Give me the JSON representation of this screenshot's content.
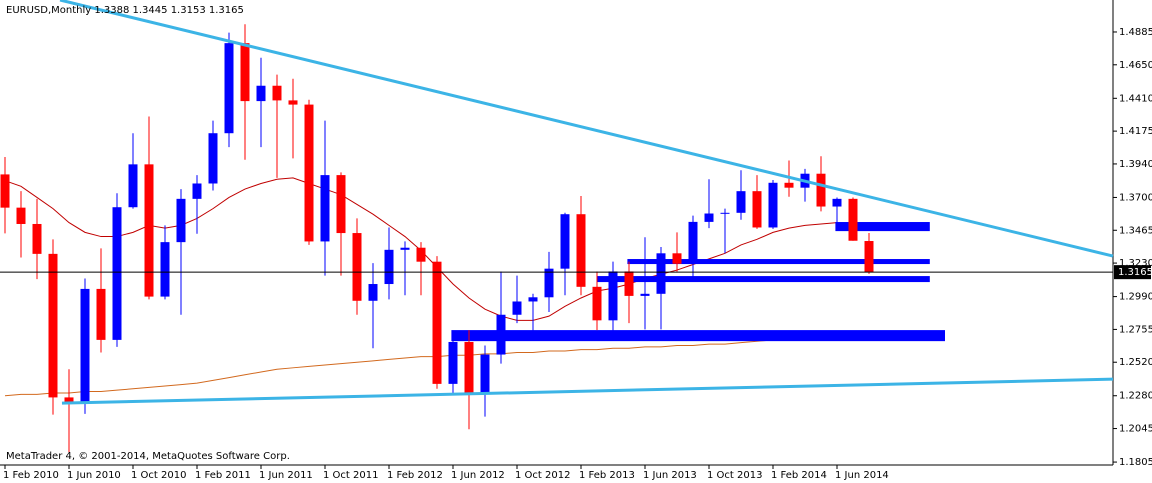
{
  "chart_data": {
    "type": "candlestick",
    "title": "EURUSD,Monthly  1.3388 1.3445 1.3153 1.3165",
    "footer": "MetaTrader 4, © 2001-2014, MetaQuotes Software Corp.",
    "categories": [
      "1 Feb 2010",
      null,
      null,
      null,
      "1 Jun 2010",
      null,
      null,
      null,
      "1 Oct 2010",
      null,
      null,
      null,
      "1 Feb 2011",
      null,
      null,
      null,
      "1 Jun 2011",
      null,
      null,
      null,
      "1 Oct 2011",
      null,
      null,
      null,
      "1 Feb 2012",
      null,
      null,
      null,
      "1 Jun 2012",
      null,
      null,
      null,
      "1 Oct 2012",
      null,
      null,
      null,
      "1 Feb 2013",
      null,
      null,
      null,
      "1 Jun 2013",
      null,
      null,
      null,
      "1 Oct 2013",
      null,
      null,
      null,
      "1 Feb 2014",
      null,
      null,
      null,
      "1 Jun 2014",
      null,
      null
    ],
    "open": [
      1.3865,
      1.3627,
      1.351,
      1.3296,
      1.2268,
      1.2232,
      1.3045,
      1.268,
      1.363,
      1.3937,
      1.299,
      1.338,
      1.369,
      1.38,
      1.416,
      1.4805,
      1.439,
      1.45,
      1.4395,
      1.4365,
      1.3385,
      1.386,
      1.3445,
      1.296,
      1.308,
      1.3325,
      1.334,
      1.324,
      1.2365,
      1.2665,
      1.23,
      1.2575,
      1.286,
      1.2955,
      1.2985,
      1.319,
      1.358,
      1.306,
      1.282,
      1.317,
      1.2995,
      1.301,
      1.33,
      1.3225,
      1.3525,
      1.3585,
      1.359,
      1.3745,
      1.3485,
      1.3805,
      1.377,
      1.387,
      1.3635,
      1.369,
      1.3388
    ],
    "high": [
      1.399,
      1.3745,
      1.369,
      1.34,
      1.247,
      1.312,
      1.3335,
      1.373,
      1.416,
      1.428,
      1.35,
      1.376,
      1.386,
      1.425,
      1.488,
      1.494,
      1.47,
      1.458,
      1.455,
      1.44,
      1.425,
      1.388,
      1.355,
      1.323,
      1.3485,
      1.3385,
      1.338,
      1.328,
      1.2745,
      1.275,
      1.264,
      1.317,
      1.314,
      1.301,
      1.331,
      1.359,
      1.371,
      1.317,
      1.324,
      1.324,
      1.3415,
      1.3345,
      1.345,
      1.357,
      1.383,
      1.362,
      1.3895,
      1.386,
      1.3825,
      1.3965,
      1.3905,
      1.3995,
      1.37,
      1.37,
      1.3445
    ],
    "low": [
      1.3443,
      1.327,
      1.3115,
      1.2145,
      1.1875,
      1.215,
      1.259,
      1.263,
      1.362,
      1.297,
      1.297,
      1.286,
      1.344,
      1.375,
      1.406,
      1.397,
      1.406,
      1.384,
      1.398,
      1.336,
      1.314,
      1.314,
      1.286,
      1.262,
      1.297,
      1.3,
      1.3,
      1.233,
      1.2285,
      1.204,
      1.213,
      1.251,
      1.28,
      1.269,
      1.288,
      1.3,
      1.3,
      1.275,
      1.2745,
      1.28,
      1.2755,
      1.2755,
      1.317,
      1.31,
      1.348,
      1.33,
      1.354,
      1.3475,
      1.3475,
      1.3705,
      1.367,
      1.36,
      1.3505,
      1.339,
      1.3153
    ],
    "close": [
      1.3627,
      1.351,
      1.3296,
      1.2268,
      1.2232,
      1.3045,
      1.268,
      1.363,
      1.3937,
      1.299,
      1.338,
      1.369,
      1.38,
      1.416,
      1.4805,
      1.439,
      1.45,
      1.4395,
      1.4365,
      1.3385,
      1.386,
      1.3445,
      1.296,
      1.308,
      1.3325,
      1.334,
      1.324,
      1.2365,
      1.2665,
      1.23,
      1.2575,
      1.286,
      1.2955,
      1.2985,
      1.319,
      1.358,
      1.306,
      1.282,
      1.317,
      1.2995,
      1.301,
      1.33,
      1.3225,
      1.3525,
      1.3585,
      1.359,
      1.3745,
      1.3485,
      1.3805,
      1.377,
      1.387,
      1.3635,
      1.369,
      1.339,
      1.3165
    ],
    "up_color": "#0000ff",
    "down_color": "#ff0000",
    "overlays": [
      {
        "color": "#c00000",
        "values": [
          1.382,
          1.378,
          1.37,
          1.362,
          1.352,
          1.345,
          1.342,
          1.342,
          1.345,
          1.35,
          1.348,
          1.35,
          1.355,
          1.362,
          1.37,
          1.376,
          1.38,
          1.383,
          1.384,
          1.38,
          1.376,
          1.372,
          1.365,
          1.358,
          1.35,
          1.342,
          1.332,
          1.32,
          1.308,
          1.298,
          1.29,
          1.285,
          1.282,
          1.282,
          1.285,
          1.292,
          1.298,
          1.303,
          1.305,
          1.308,
          1.312,
          1.315,
          1.318,
          1.322,
          1.326,
          1.33,
          1.336,
          1.34,
          1.345,
          1.348,
          1.35,
          1.351,
          1.352,
          1.35,
          1.348
        ]
      },
      {
        "color": "#d2691e",
        "values": [
          1.228,
          1.229,
          1.229,
          1.23,
          1.23,
          1.231,
          1.231,
          1.232,
          1.233,
          1.234,
          1.235,
          1.236,
          1.237,
          1.239,
          1.241,
          1.243,
          1.245,
          1.247,
          1.248,
          1.249,
          1.25,
          1.251,
          1.252,
          1.253,
          1.254,
          1.255,
          1.256,
          1.256,
          1.257,
          1.257,
          1.258,
          1.258,
          1.259,
          1.259,
          1.26,
          1.26,
          1.261,
          1.261,
          1.262,
          1.262,
          1.263,
          1.263,
          1.264,
          1.264,
          1.265,
          1.265,
          1.266,
          1.267,
          1.268,
          1.269,
          1.27,
          1.271,
          1.272,
          1.272,
          1.273
        ]
      }
    ],
    "trendlines": [
      {
        "color": "#3cb4e6",
        "points": [
          [
            3.44,
            1.5114
          ],
          [
            69.25,
            1.328
          ]
        ]
      },
      {
        "color": "#3cb4e6",
        "points": [
          [
            3.56,
            1.2227
          ],
          [
            69.25,
            1.2399
          ]
        ]
      }
    ],
    "zones": [
      {
        "color": "#0000ff",
        "from": 51.9,
        "to": 57.8,
        "top": 1.3524,
        "bottom": 1.3459
      },
      {
        "color": "#0000ff",
        "from": 38.9,
        "to": 57.8,
        "top": 1.3259,
        "bottom": 1.3223
      },
      {
        "color": "#0000ff",
        "from": 37.0,
        "to": 57.8,
        "top": 1.3137,
        "bottom": 1.3094
      },
      {
        "color": "#0000ff",
        "from": 27.9,
        "to": 58.75,
        "top": 1.275,
        "bottom": 1.2671
      }
    ],
    "current_price": 1.3165,
    "ylim": [
      1.1784,
      1.5114
    ],
    "yticks": [
      1.1805,
      1.2045,
      {
        "value": 1.228,
        "label": "1.2280"
      },
      {
        "value": 1.252,
        "label": "1.2520"
      },
      1.2755,
      {
        "value": 1.299,
        "label": "1.2990"
      },
      {
        "value": 1.323,
        "label": "1.3230"
      },
      1.3465,
      {
        "value": 1.37,
        "label": "1.3700"
      },
      {
        "value": 1.394,
        "label": "1.3940"
      },
      1.4175,
      {
        "value": 1.441,
        "label": "1.4410"
      },
      {
        "value": 1.465,
        "label": "1.4650"
      },
      1.4885
    ]
  }
}
